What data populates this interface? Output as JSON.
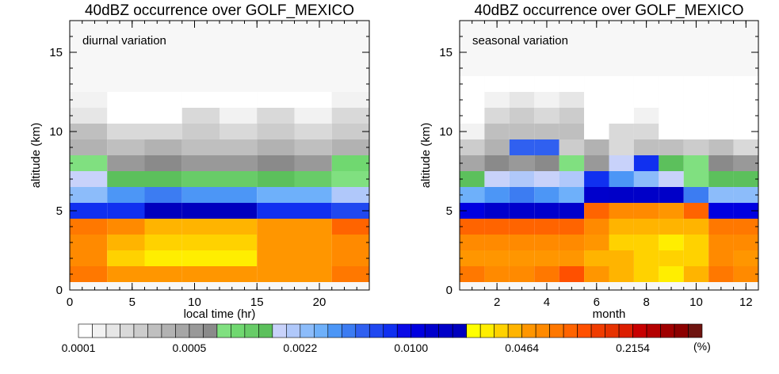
{
  "chart_data": [
    {
      "type": "heatmap",
      "title": "40dBZ occurrence over GOLF_MEXICO",
      "annotation": "diurnal variation",
      "xlabel": "local time (hr)",
      "ylabel": "altitude (km)",
      "xlim": [
        0,
        24
      ],
      "ylim": [
        0,
        17
      ],
      "xticks": [
        0,
        5,
        10,
        15,
        20
      ],
      "yticks": [
        0,
        5,
        10,
        15
      ],
      "x_bins": [
        [
          0,
          3
        ],
        [
          3,
          6
        ],
        [
          6,
          9
        ],
        [
          9,
          12
        ],
        [
          12,
          15
        ],
        [
          15,
          18
        ],
        [
          18,
          21
        ],
        [
          21,
          24
        ]
      ],
      "altitude_bins_km": [
        [
          0.5,
          1.5
        ],
        [
          1.5,
          2.5
        ],
        [
          2.5,
          3.5
        ],
        [
          3.5,
          4.5
        ],
        [
          4.5,
          5.5
        ],
        [
          5.5,
          6.5
        ],
        [
          6.5,
          7.5
        ],
        [
          7.5,
          8.5
        ],
        [
          8.5,
          9.5
        ],
        [
          9.5,
          10.5
        ],
        [
          10.5,
          11.5
        ],
        [
          11.5,
          12.5
        ]
      ],
      "values_color_index": [
        [
          34,
          32,
          32,
          32,
          32,
          32,
          32,
          34
        ],
        [
          33,
          30,
          29,
          29,
          29,
          32,
          32,
          33
        ],
        [
          33,
          31,
          30,
          30,
          30,
          32,
          32,
          33
        ],
        [
          34,
          33,
          31,
          31,
          31,
          32,
          32,
          35
        ],
        [
          22,
          22,
          27,
          27,
          27,
          22,
          22,
          21
        ],
        [
          16,
          18,
          19,
          18,
          18,
          17,
          17,
          15
        ],
        [
          14,
          13,
          13,
          12,
          12,
          13,
          12,
          10
        ],
        [
          10,
          8,
          9,
          8,
          8,
          9,
          8,
          11
        ],
        [
          6,
          5,
          6,
          5,
          5,
          6,
          5,
          6
        ],
        [
          5,
          3,
          3,
          4,
          3,
          4,
          3,
          4
        ],
        [
          2,
          0,
          0,
          3,
          1,
          3,
          1,
          3
        ],
        [
          1,
          0,
          0,
          0,
          0,
          0,
          0,
          1
        ]
      ]
    },
    {
      "type": "heatmap",
      "title": "40dBZ occurrence over GOLF_MEXICO",
      "annotation": "seasonal variation",
      "xlabel": "month",
      "ylabel": "altitude (km)",
      "xlim": [
        0.5,
        12.5
      ],
      "ylim": [
        0,
        17
      ],
      "xticks": [
        2,
        4,
        6,
        8,
        10,
        12
      ],
      "yticks": [
        0,
        5,
        10,
        15
      ],
      "x_bins": [
        [
          0.5,
          1.5
        ],
        [
          1.5,
          2.5
        ],
        [
          2.5,
          3.5
        ],
        [
          3.5,
          4.5
        ],
        [
          4.5,
          5.5
        ],
        [
          5.5,
          6.5
        ],
        [
          6.5,
          7.5
        ],
        [
          7.5,
          8.5
        ],
        [
          8.5,
          9.5
        ],
        [
          9.5,
          10.5
        ],
        [
          10.5,
          11.5
        ],
        [
          11.5,
          12.5
        ]
      ],
      "altitude_bins_km": [
        [
          0.5,
          1.5
        ],
        [
          1.5,
          2.5
        ],
        [
          2.5,
          3.5
        ],
        [
          3.5,
          4.5
        ],
        [
          4.5,
          5.5
        ],
        [
          5.5,
          6.5
        ],
        [
          6.5,
          7.5
        ],
        [
          7.5,
          8.5
        ],
        [
          8.5,
          9.5
        ],
        [
          9.5,
          10.5
        ],
        [
          10.5,
          11.5
        ],
        [
          11.5,
          12.5
        ],
        [
          12.5,
          13.5
        ]
      ],
      "values_color_index": [
        [
          34,
          33,
          33,
          34,
          36,
          32,
          31,
          30,
          29,
          31,
          34,
          33
        ],
        [
          32,
          32,
          32,
          32,
          32,
          31,
          31,
          30,
          30,
          30,
          33,
          32
        ],
        [
          33,
          33,
          33,
          33,
          33,
          32,
          30,
          30,
          29,
          30,
          33,
          33
        ],
        [
          35,
          35,
          35,
          35,
          35,
          33,
          31,
          31,
          31,
          31,
          34,
          34
        ],
        [
          24,
          25,
          25,
          25,
          25,
          35,
          33,
          33,
          32,
          35,
          24,
          24
        ],
        [
          17,
          18,
          19,
          18,
          17,
          25,
          26,
          26,
          26,
          19,
          16,
          16
        ],
        [
          13,
          14,
          15,
          14,
          15,
          22,
          18,
          16,
          14,
          10,
          13,
          13
        ],
        [
          7,
          9,
          8,
          9,
          10,
          8,
          14,
          22,
          13,
          10,
          9,
          8
        ],
        [
          4,
          6,
          20,
          20,
          4,
          6,
          3,
          5,
          5,
          4,
          5,
          3
        ],
        [
          1,
          5,
          5,
          5,
          5,
          0,
          3,
          3,
          0,
          0,
          0,
          0
        ],
        [
          0,
          3,
          4,
          3,
          4,
          0,
          0,
          1,
          0,
          0,
          0,
          0
        ],
        [
          0,
          1,
          2,
          1,
          2,
          0,
          0,
          0,
          0,
          0,
          0,
          0
        ],
        [
          0,
          0,
          0,
          0,
          0,
          0,
          0,
          0,
          0,
          0,
          0,
          0
        ]
      ]
    }
  ],
  "colorbar": {
    "unit": "(%)",
    "tick_labels": [
      "0.0001",
      "0.0005",
      "0.0022",
      "0.0100",
      "0.0464",
      "0.2154"
    ],
    "tick_at_index": [
      0,
      8,
      16,
      24,
      32,
      40
    ],
    "colors": [
      "#ffffff",
      "#f2f2f2",
      "#e6e6e6",
      "#d9d9d9",
      "#cccccc",
      "#bfbfbf",
      "#b2b2b2",
      "#a6a6a6",
      "#999999",
      "#8a8a8a",
      "#80e080",
      "#70d870",
      "#68cc68",
      "#5cc05c",
      "#c8d2fa",
      "#b0c8fa",
      "#8cbcfa",
      "#6eb0fa",
      "#4c96f6",
      "#3c7cf2",
      "#3060f0",
      "#2048f0",
      "#1030f0",
      "#0a0ae6",
      "#0000e0",
      "#0000cc",
      "#0000c8",
      "#0000be",
      "#ffff00",
      "#ffee00",
      "#ffd200",
      "#ffb400",
      "#ff9600",
      "#ff8a00",
      "#ff7800",
      "#ff6400",
      "#ff5000",
      "#f03c00",
      "#e63200",
      "#dc1e00",
      "#c80000",
      "#b40000",
      "#a00000",
      "#8c0000",
      "#6e1410"
    ],
    "empty_color": "#f7f7f7"
  }
}
